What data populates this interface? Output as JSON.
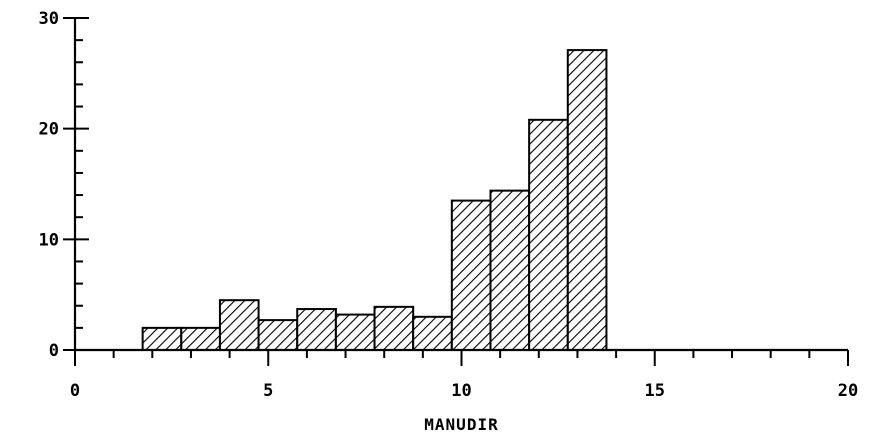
{
  "chart_data": {
    "type": "bar",
    "title": "",
    "xlabel": "MANUDIR",
    "ylabel": "",
    "xlim": [
      0,
      20
    ],
    "ylim": [
      0,
      30
    ],
    "x_ticks": [
      0,
      5,
      10,
      15,
      20
    ],
    "y_ticks": [
      0,
      10,
      20,
      30
    ],
    "x_minor_step": 1,
    "y_minor_step": 2,
    "grid": false,
    "bar_fill": "diagonal-hatch",
    "bar_color": "#000000",
    "bins": [
      {
        "x0": 1.75,
        "x1": 2.75,
        "value": 2
      },
      {
        "x0": 2.75,
        "x1": 3.75,
        "value": 2
      },
      {
        "x0": 3.75,
        "x1": 4.75,
        "value": 4.5
      },
      {
        "x0": 4.75,
        "x1": 5.75,
        "value": 2.7
      },
      {
        "x0": 5.75,
        "x1": 6.75,
        "value": 3.7
      },
      {
        "x0": 6.75,
        "x1": 7.75,
        "value": 3.2
      },
      {
        "x0": 7.75,
        "x1": 8.75,
        "value": 3.9
      },
      {
        "x0": 8.75,
        "x1": 9.75,
        "value": 3
      },
      {
        "x0": 9.75,
        "x1": 10.75,
        "value": 13.5
      },
      {
        "x0": 10.75,
        "x1": 11.75,
        "value": 14.4
      },
      {
        "x0": 11.75,
        "x1": 12.75,
        "value": 20.8
      },
      {
        "x0": 12.75,
        "x1": 13.75,
        "value": 27.1
      }
    ]
  }
}
